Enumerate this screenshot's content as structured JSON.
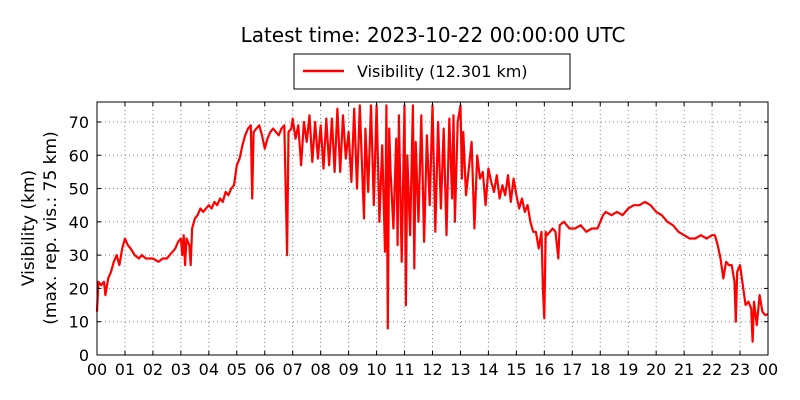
{
  "title": "Latest time: 2023-10-22 00:00:00 UTC",
  "legend_label": "Visibility (12.301 km)",
  "ylabel_line1": "Visibility (km)",
  "ylabel_line2": "(max. rep. vis.: 75 km)",
  "colors": {
    "series": "#ff0000",
    "grid": "#808080",
    "axes": "#000000"
  },
  "chart_data": {
    "type": "line",
    "title": "Latest time: 2023-10-22 00:00:00 UTC",
    "xlabel": "",
    "ylabel": "Visibility (km)\n(max. rep. vis.: 75 km)",
    "x_unit": "hour of day (UTC)",
    "xlim": [
      0,
      24
    ],
    "ylim": [
      0,
      76
    ],
    "xticks": [
      0,
      1,
      2,
      3,
      4,
      5,
      6,
      7,
      8,
      9,
      10,
      11,
      12,
      13,
      14,
      15,
      16,
      17,
      18,
      19,
      20,
      21,
      22,
      23,
      24
    ],
    "xtick_labels": [
      "00",
      "01",
      "02",
      "03",
      "04",
      "05",
      "06",
      "07",
      "08",
      "09",
      "10",
      "11",
      "12",
      "13",
      "14",
      "15",
      "16",
      "17",
      "18",
      "19",
      "20",
      "21",
      "22",
      "23",
      "00"
    ],
    "yticks": [
      0,
      10,
      20,
      30,
      40,
      50,
      60,
      70
    ],
    "ytick_labels": [
      "0",
      "10",
      "20",
      "30",
      "40",
      "50",
      "60",
      "70"
    ],
    "grid": true,
    "legend_position": "top-center",
    "series": [
      {
        "name": "Visibility (12.301 km)",
        "color": "#ff0000",
        "points": [
          [
            0.0,
            13
          ],
          [
            0.05,
            22
          ],
          [
            0.15,
            21
          ],
          [
            0.25,
            22
          ],
          [
            0.3,
            18
          ],
          [
            0.4,
            23
          ],
          [
            0.5,
            25
          ],
          [
            0.6,
            28
          ],
          [
            0.7,
            30
          ],
          [
            0.8,
            27
          ],
          [
            0.9,
            32
          ],
          [
            1.0,
            35
          ],
          [
            1.1,
            33
          ],
          [
            1.2,
            32
          ],
          [
            1.35,
            30
          ],
          [
            1.5,
            29
          ],
          [
            1.6,
            30
          ],
          [
            1.75,
            29
          ],
          [
            1.9,
            29
          ],
          [
            2.0,
            29
          ],
          [
            2.2,
            28
          ],
          [
            2.35,
            29
          ],
          [
            2.5,
            29
          ],
          [
            2.6,
            30
          ],
          [
            2.7,
            31
          ],
          [
            2.8,
            32
          ],
          [
            2.9,
            34
          ],
          [
            3.0,
            35
          ],
          [
            3.05,
            30
          ],
          [
            3.1,
            36
          ],
          [
            3.15,
            27
          ],
          [
            3.2,
            35
          ],
          [
            3.3,
            33
          ],
          [
            3.35,
            27
          ],
          [
            3.4,
            38
          ],
          [
            3.5,
            41
          ],
          [
            3.6,
            42
          ],
          [
            3.7,
            44
          ],
          [
            3.8,
            43
          ],
          [
            3.9,
            44
          ],
          [
            4.0,
            45
          ],
          [
            4.1,
            44
          ],
          [
            4.2,
            46
          ],
          [
            4.3,
            45
          ],
          [
            4.4,
            47
          ],
          [
            4.5,
            46
          ],
          [
            4.6,
            49
          ],
          [
            4.7,
            48
          ],
          [
            4.8,
            50
          ],
          [
            4.9,
            51
          ],
          [
            5.0,
            57
          ],
          [
            5.1,
            59
          ],
          [
            5.2,
            63
          ],
          [
            5.3,
            66
          ],
          [
            5.4,
            68
          ],
          [
            5.5,
            69
          ],
          [
            5.55,
            47
          ],
          [
            5.6,
            67
          ],
          [
            5.7,
            68
          ],
          [
            5.8,
            69
          ],
          [
            5.9,
            66
          ],
          [
            6.0,
            62
          ],
          [
            6.1,
            65
          ],
          [
            6.2,
            67
          ],
          [
            6.3,
            68
          ],
          [
            6.4,
            67
          ],
          [
            6.5,
            66
          ],
          [
            6.6,
            68
          ],
          [
            6.7,
            69
          ],
          [
            6.8,
            30
          ],
          [
            6.85,
            67
          ],
          [
            6.95,
            68
          ],
          [
            7.0,
            71
          ],
          [
            7.1,
            65
          ],
          [
            7.2,
            69
          ],
          [
            7.3,
            57
          ],
          [
            7.4,
            70
          ],
          [
            7.5,
            64
          ],
          [
            7.6,
            72
          ],
          [
            7.7,
            58
          ],
          [
            7.8,
            70
          ],
          [
            7.9,
            59
          ],
          [
            8.0,
            69
          ],
          [
            8.1,
            56
          ],
          [
            8.2,
            71
          ],
          [
            8.3,
            57
          ],
          [
            8.4,
            71
          ],
          [
            8.5,
            55
          ],
          [
            8.6,
            74
          ],
          [
            8.7,
            55
          ],
          [
            8.8,
            72
          ],
          [
            8.9,
            59
          ],
          [
            9.0,
            67
          ],
          [
            9.1,
            52
          ],
          [
            9.2,
            74
          ],
          [
            9.3,
            50
          ],
          [
            9.4,
            75
          ],
          [
            9.5,
            52
          ],
          [
            9.55,
            41
          ],
          [
            9.6,
            68
          ],
          [
            9.7,
            49
          ],
          [
            9.8,
            75
          ],
          [
            9.9,
            45
          ],
          [
            10.0,
            75
          ],
          [
            10.1,
            40
          ],
          [
            10.2,
            63
          ],
          [
            10.3,
            31
          ],
          [
            10.35,
            75
          ],
          [
            10.4,
            8
          ],
          [
            10.45,
            68
          ],
          [
            10.5,
            55
          ],
          [
            10.6,
            38
          ],
          [
            10.7,
            65
          ],
          [
            10.75,
            33
          ],
          [
            10.8,
            72
          ],
          [
            10.9,
            28
          ],
          [
            11.0,
            75
          ],
          [
            11.05,
            15
          ],
          [
            11.1,
            60
          ],
          [
            11.2,
            36
          ],
          [
            11.3,
            75
          ],
          [
            11.35,
            26
          ],
          [
            11.4,
            64
          ],
          [
            11.5,
            40
          ],
          [
            11.6,
            72
          ],
          [
            11.7,
            34
          ],
          [
            11.8,
            66
          ],
          [
            11.9,
            45
          ],
          [
            12.0,
            75
          ],
          [
            12.1,
            37
          ],
          [
            12.2,
            70
          ],
          [
            12.3,
            44
          ],
          [
            12.4,
            68
          ],
          [
            12.5,
            36
          ],
          [
            12.6,
            71
          ],
          [
            12.7,
            47
          ],
          [
            12.75,
            72
          ],
          [
            12.8,
            40
          ],
          [
            12.9,
            70
          ],
          [
            13.0,
            75
          ],
          [
            13.05,
            53
          ],
          [
            13.1,
            67
          ],
          [
            13.2,
            48
          ],
          [
            13.3,
            56
          ],
          [
            13.4,
            64
          ],
          [
            13.5,
            38
          ],
          [
            13.6,
            60
          ],
          [
            13.7,
            53
          ],
          [
            13.8,
            55
          ],
          [
            13.9,
            45
          ],
          [
            14.0,
            56
          ],
          [
            14.1,
            52
          ],
          [
            14.2,
            49
          ],
          [
            14.3,
            54
          ],
          [
            14.4,
            47
          ],
          [
            14.5,
            51
          ],
          [
            14.6,
            48
          ],
          [
            14.7,
            54
          ],
          [
            14.8,
            46
          ],
          [
            14.9,
            53
          ],
          [
            15.0,
            48
          ],
          [
            15.1,
            44
          ],
          [
            15.2,
            47
          ],
          [
            15.3,
            43
          ],
          [
            15.4,
            45
          ],
          [
            15.5,
            40
          ],
          [
            15.6,
            37
          ],
          [
            15.7,
            37
          ],
          [
            15.8,
            32
          ],
          [
            15.9,
            37
          ],
          [
            15.95,
            20
          ],
          [
            16.0,
            11
          ],
          [
            16.05,
            37
          ],
          [
            16.1,
            36
          ],
          [
            16.2,
            37
          ],
          [
            16.3,
            38
          ],
          [
            16.4,
            37
          ],
          [
            16.5,
            29
          ],
          [
            16.55,
            39
          ],
          [
            16.7,
            40
          ],
          [
            16.9,
            38
          ],
          [
            17.1,
            38
          ],
          [
            17.3,
            39
          ],
          [
            17.5,
            37
          ],
          [
            17.7,
            38
          ],
          [
            17.9,
            38
          ],
          [
            18.0,
            40
          ],
          [
            18.1,
            42
          ],
          [
            18.2,
            43
          ],
          [
            18.4,
            42
          ],
          [
            18.6,
            43
          ],
          [
            18.8,
            42
          ],
          [
            19.0,
            44
          ],
          [
            19.2,
            45
          ],
          [
            19.4,
            45
          ],
          [
            19.6,
            46
          ],
          [
            19.8,
            45
          ],
          [
            20.0,
            43
          ],
          [
            20.2,
            42
          ],
          [
            20.4,
            40
          ],
          [
            20.6,
            39
          ],
          [
            20.8,
            37
          ],
          [
            21.0,
            36
          ],
          [
            21.2,
            35
          ],
          [
            21.4,
            35
          ],
          [
            21.6,
            36
          ],
          [
            21.8,
            35
          ],
          [
            22.0,
            36
          ],
          [
            22.1,
            36
          ],
          [
            22.2,
            33
          ],
          [
            22.3,
            29
          ],
          [
            22.4,
            23
          ],
          [
            22.5,
            28
          ],
          [
            22.6,
            27
          ],
          [
            22.7,
            27
          ],
          [
            22.8,
            22
          ],
          [
            22.85,
            10
          ],
          [
            22.9,
            25
          ],
          [
            23.0,
            27
          ],
          [
            23.1,
            21
          ],
          [
            23.2,
            15
          ],
          [
            23.3,
            16
          ],
          [
            23.4,
            14
          ],
          [
            23.45,
            4
          ],
          [
            23.5,
            16
          ],
          [
            23.6,
            9
          ],
          [
            23.7,
            18
          ],
          [
            23.8,
            13
          ],
          [
            23.9,
            12
          ],
          [
            24.0,
            12.3
          ]
        ]
      }
    ]
  }
}
